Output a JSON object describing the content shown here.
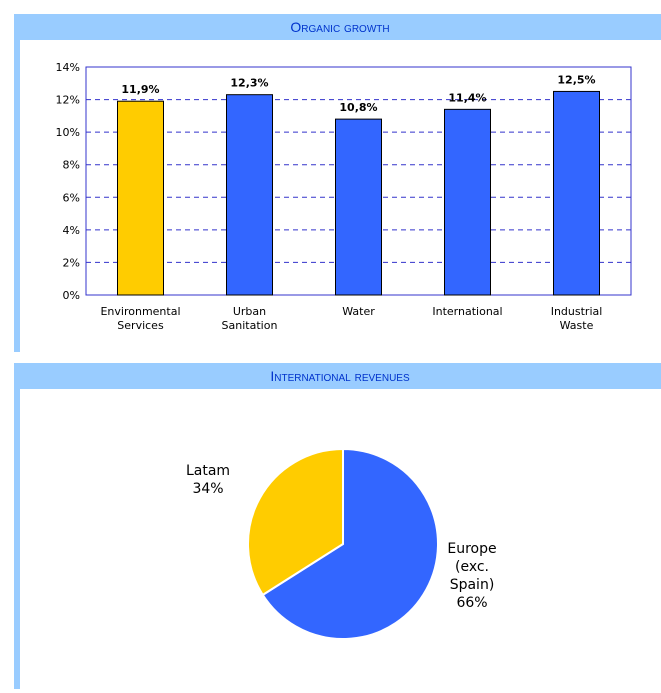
{
  "chart_data": [
    {
      "type": "bar",
      "title": "Organic growth",
      "categories": [
        "Environmental Services",
        "Urban Sanitation",
        "Water",
        "International",
        "Industrial Waste"
      ],
      "values": [
        11.9,
        12.3,
        10.8,
        11.4,
        12.5
      ],
      "value_labels": [
        "11,9%",
        "12,3%",
        "10,8%",
        "11,4%",
        "12,5%"
      ],
      "colors": [
        "#ffcc00",
        "#3366ff",
        "#3366ff",
        "#3366ff",
        "#3366ff"
      ],
      "ylim": [
        0,
        14
      ],
      "yticks": [
        {
          "value": 0,
          "label": "0%"
        },
        {
          "value": 2,
          "label": "2%"
        },
        {
          "value": 4,
          "label": "4%"
        },
        {
          "value": 6,
          "label": "6%"
        },
        {
          "value": 8,
          "label": "8%"
        },
        {
          "value": 10,
          "label": "10%"
        },
        {
          "value": 12,
          "label": "12%"
        },
        {
          "value": 14,
          "label": "14%"
        }
      ],
      "grid": true
    },
    {
      "type": "pie",
      "title": "International revenues",
      "categories": [
        "Europe (exc. Spain)",
        "Latam"
      ],
      "values": [
        66,
        34
      ],
      "value_labels": [
        "66%",
        "34%"
      ],
      "colors": [
        "#3366ff",
        "#ffcc00"
      ]
    }
  ]
}
